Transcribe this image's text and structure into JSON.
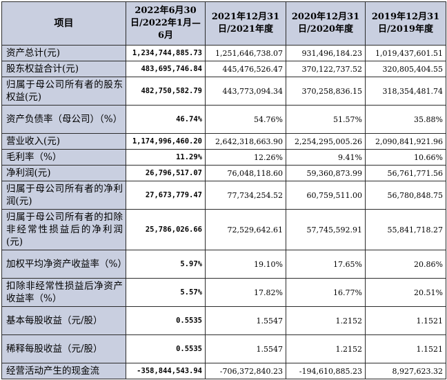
{
  "table": {
    "headers": [
      "项目",
      "2022年6月30日/2022年1月—6月",
      "2021年12月31日/2021年度",
      "2020年12月31日/2020年度",
      "2019年12月31日/2019年度"
    ],
    "rows": [
      {
        "label": "资产总计(元)",
        "values": [
          "1,234,744,885.73",
          "1,251,646,738.07",
          "931,496,184.23",
          "1,019,437,601.51"
        ]
      },
      {
        "label": "股东权益合计(元)",
        "values": [
          "483,695,746.84",
          "445,476,526.47",
          "370,122,737.52",
          "320,805,404.55"
        ]
      },
      {
        "label": "归属于母公司所有者的股东权益(元)",
        "values": [
          "482,750,582.79",
          "443,773,094.34",
          "370,258,836.15",
          "318,354,481.74"
        ]
      },
      {
        "label": "资产负债率（母公司）（%）",
        "values": [
          "46.74%",
          "54.76%",
          "51.57%",
          "35.88%"
        ]
      },
      {
        "label": "营业收入(元)",
        "values": [
          "1,174,996,460.20",
          "2,642,318,663.90",
          "2,254,295,005.26",
          "2,090,841,921.96"
        ]
      },
      {
        "label": "毛利率（%）",
        "values": [
          "11.29%",
          "12.26%",
          "9.41%",
          "10.66%"
        ]
      },
      {
        "label": "净利润(元)",
        "values": [
          "26,796,517.07",
          "76,048,118.60",
          "59,360,873.99",
          "56,761,771.56"
        ]
      },
      {
        "label": "归属于母公司所有者的净利润(元)",
        "values": [
          "27,673,779.47",
          "77,734,254.52",
          "60,759,511.00",
          "56,780,848.75"
        ]
      },
      {
        "label": "归属于母公司所有者的扣除非经常性损益后的净利润(元)",
        "values": [
          "25,786,026.66",
          "72,529,642.61",
          "57,745,592.91",
          "55,841,718.27"
        ]
      },
      {
        "label": "加权平均净资产收益率（%）",
        "values": [
          "5.97%",
          "19.10%",
          "17.65%",
          "20.86%"
        ]
      },
      {
        "label": "扣除非经常性损益后净资产收益率（%）",
        "values": [
          "5.57%",
          "17.82%",
          "16.77%",
          "20.51%"
        ]
      },
      {
        "label": "基本每股收益（元/股）",
        "values": [
          "0.5535",
          "1.5547",
          "1.2152",
          "1.1521"
        ]
      },
      {
        "label": "稀释每股收益（元/股）",
        "values": [
          "0.5535",
          "1.5547",
          "1.2152",
          "1.1521"
        ]
      },
      {
        "label": "经营活动产生的现金流",
        "values": [
          "-358,844,543.94",
          "-706,372,840.23",
          "-194,610,885.23",
          "8,927,623.32"
        ]
      }
    ]
  }
}
